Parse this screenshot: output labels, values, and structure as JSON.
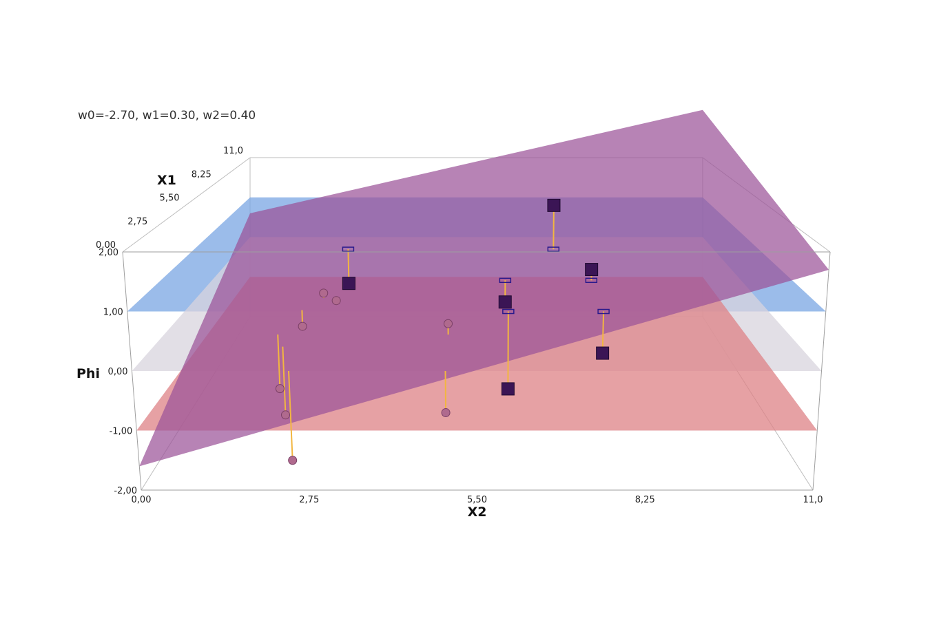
{
  "chart_data": {
    "type": "scatter",
    "annotation": "w0=-2.70, w1=0.30, w2=0.40",
    "weights": {
      "w0": -2.7,
      "w1": 0.3,
      "w2": 0.4
    },
    "xlabel": "X2",
    "ylabel": "X1",
    "zlabel": "Phi",
    "xlim": [
      0,
      11
    ],
    "ylim": [
      0,
      11
    ],
    "zlim": [
      -2,
      2
    ],
    "x_ticks": [
      "0,00",
      "2,75",
      "5,50",
      "8,25",
      "11,0"
    ],
    "y_ticks": [
      "0,00",
      "2,75",
      "5,50",
      "8,25",
      "11,0"
    ],
    "z_ticks": [
      "-2,00",
      "-1,00",
      "0,00",
      "1,00",
      "2,00"
    ],
    "reference_planes": [
      {
        "phi": 1,
        "color": "#7aa6e3"
      },
      {
        "phi": 0,
        "color": "#d8d4dd"
      },
      {
        "phi": -1,
        "color": "#de8285"
      }
    ],
    "decision_plane_color": "#9b5398",
    "series": [
      {
        "marker": "cube",
        "color": "#2a1a8c",
        "points": [
          {
            "x2": 3.0,
            "x1": 6.0
          },
          {
            "x2": 6.0,
            "x1": 3.0
          },
          {
            "x2": 6.0,
            "x1": 0.0
          },
          {
            "x2": 7.0,
            "x1": 6.0
          },
          {
            "x2": 7.5,
            "x1": 3.0
          },
          {
            "x2": 7.5,
            "x1": 0.0
          }
        ]
      },
      {
        "marker": "sphere",
        "color": "#b06a8e",
        "points": [
          {
            "x2": 2.5,
            "x1": 0.0
          },
          {
            "x2": 2.2,
            "x1": 2.0
          },
          {
            "x2": 2.5,
            "x1": 6.0
          },
          {
            "x2": 5.0,
            "x1": 0.0
          },
          {
            "x2": 5.0,
            "x1": 3.0
          },
          {
            "x2": 2.0,
            "x1": 3.0
          },
          {
            "x2": 2.2,
            "x1": 5.0
          },
          {
            "x2": 2.8,
            "x1": 5.5
          }
        ]
      }
    ]
  }
}
